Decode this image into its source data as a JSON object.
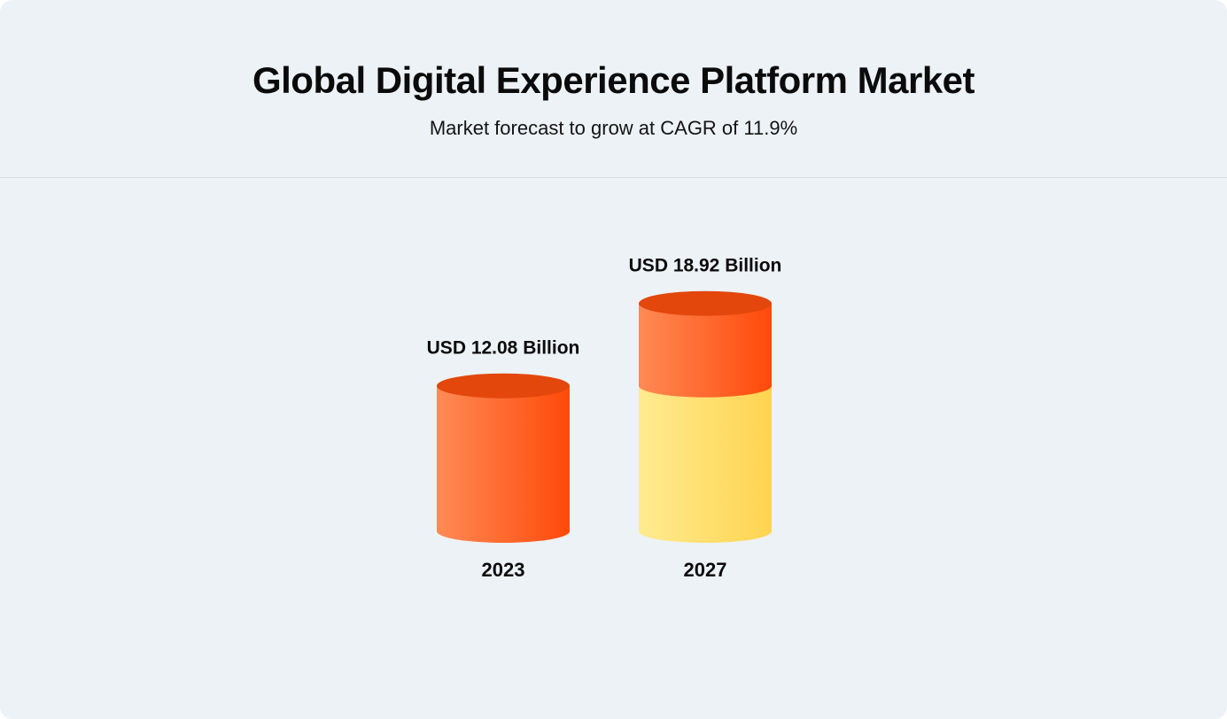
{
  "chart_data": {
    "type": "bar",
    "title": "Global Digital Experience Platform Market",
    "subtitle": "Market forecast to grow at CAGR of 11.9%",
    "categories": [
      "2023",
      "2027"
    ],
    "values": [
      12.08,
      18.92
    ],
    "value_labels": [
      "USD 12.08 Billion",
      "USD 18.92 Billion"
    ],
    "unit": "USD Billion",
    "grid": false,
    "legend": "none",
    "colors": {
      "orange_light": "#ff8a55",
      "orange_dark": "#ff4a0a",
      "orange_top": "#e3470c",
      "yellow_light": "#ffeb90",
      "yellow_dark": "#ffd450",
      "background": "#edf2f6"
    }
  }
}
